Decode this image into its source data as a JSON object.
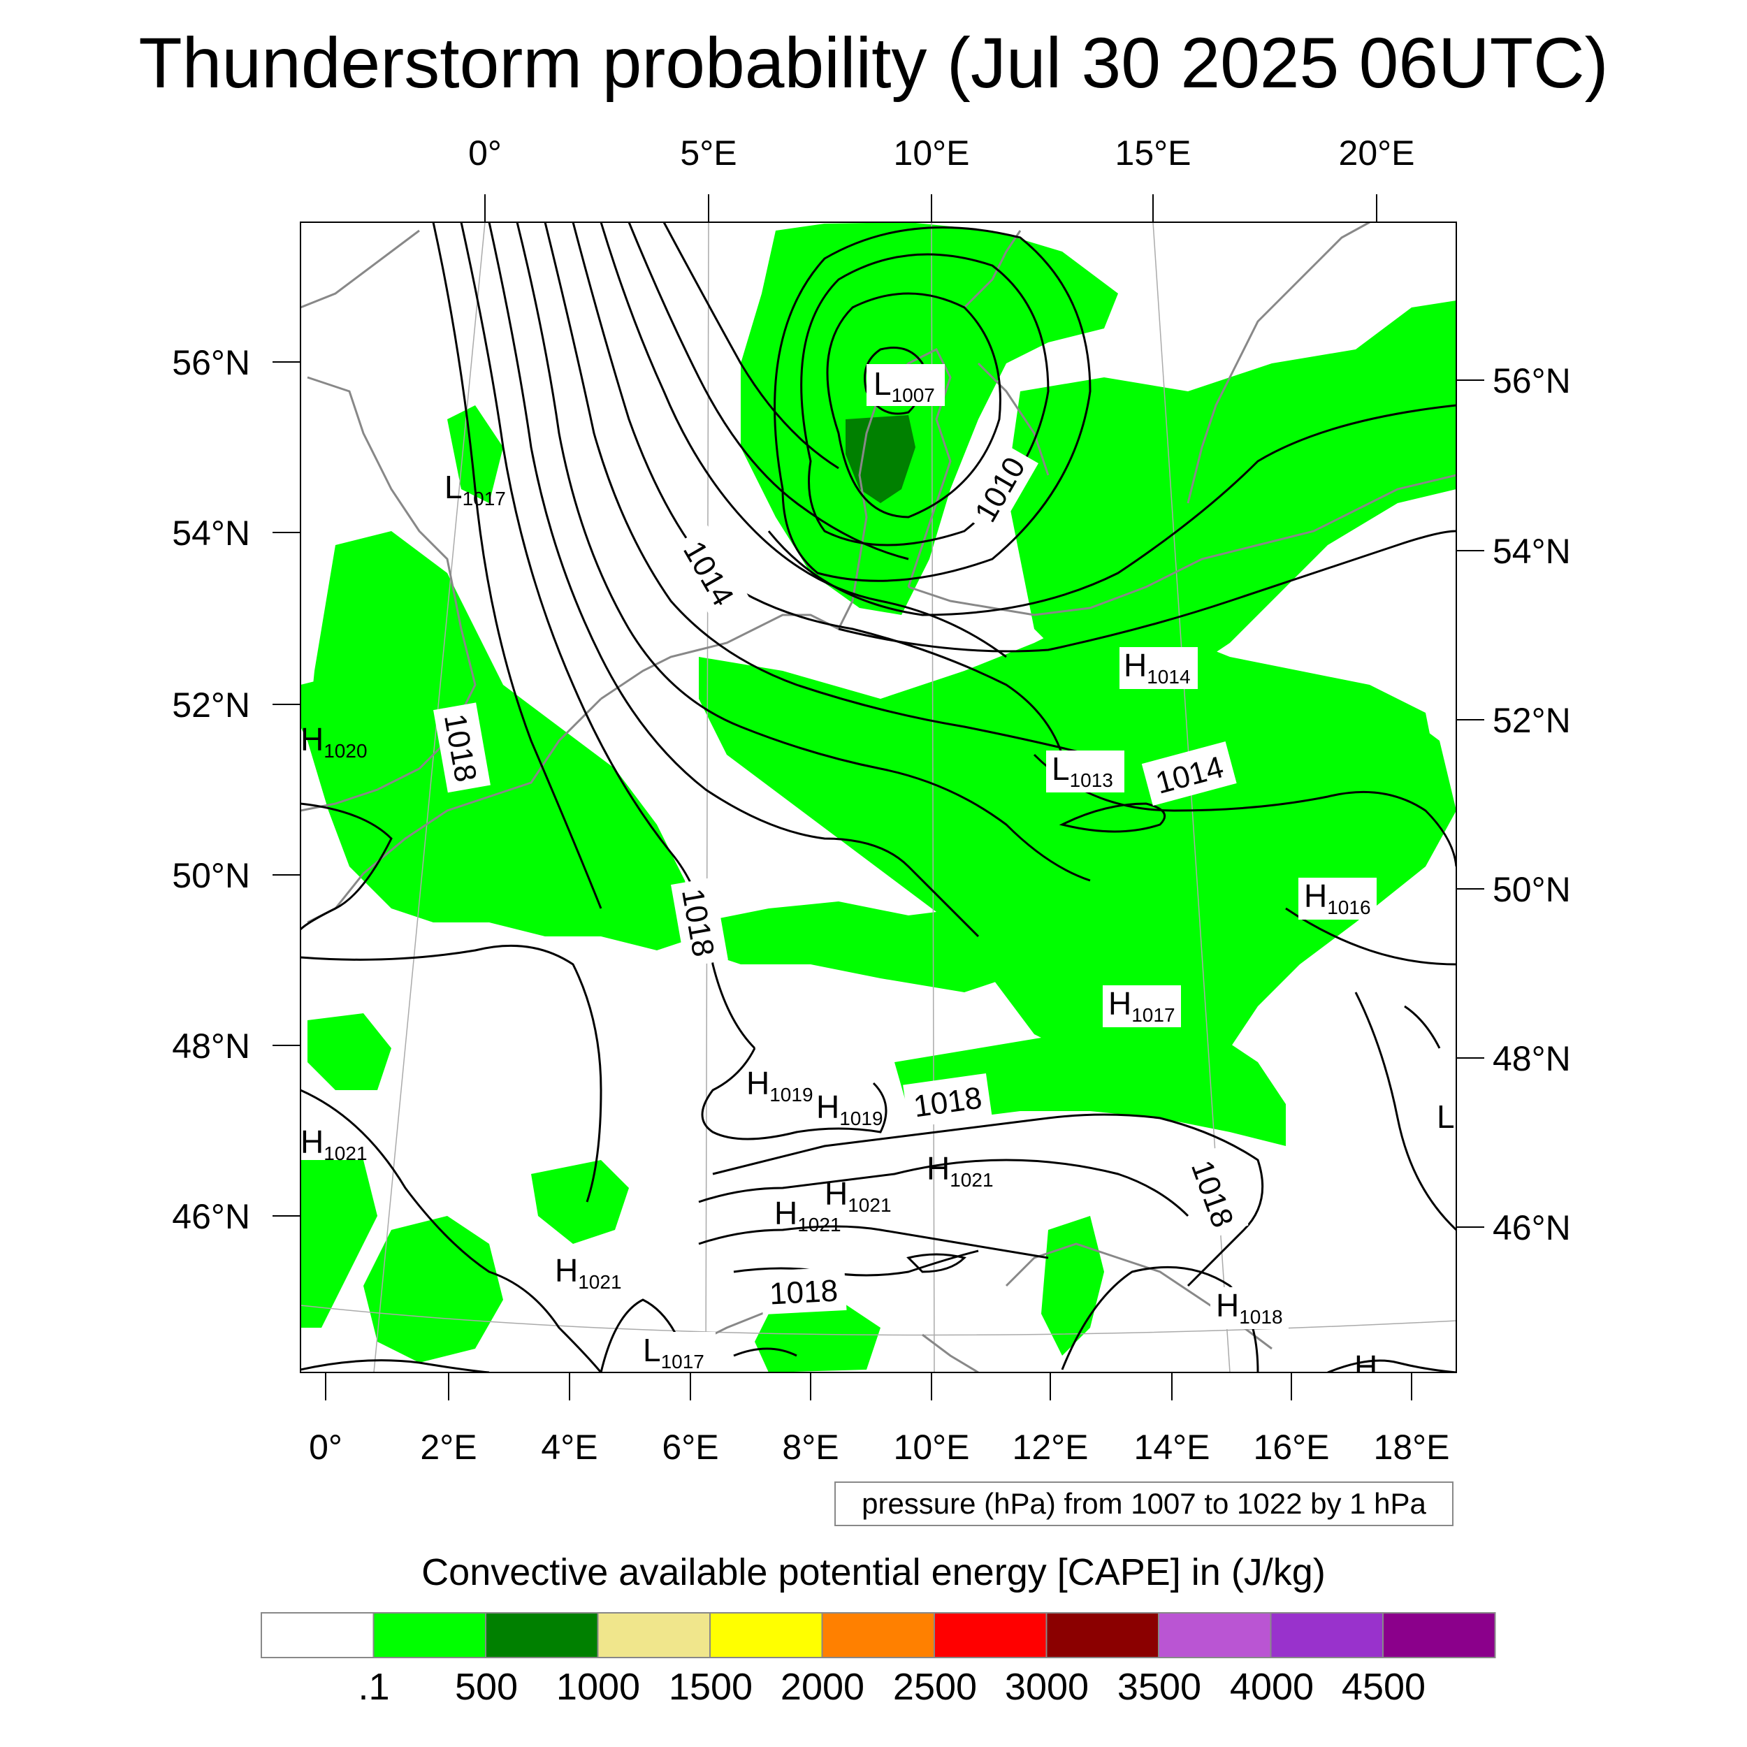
{
  "title": "Thunderstorm probability (Jul 30 2025 06UTC)",
  "axes": {
    "top_lon": [
      "0°",
      "5°E",
      "10°E",
      "15°E",
      "20°E"
    ],
    "bottom_lon": [
      "0°",
      "2°E",
      "4°E",
      "6°E",
      "8°E",
      "10°E",
      "12°E",
      "14°E",
      "16°E",
      "18°E"
    ],
    "left_lat": [
      "56°N",
      "54°N",
      "52°N",
      "50°N",
      "48°N",
      "46°N"
    ],
    "right_lat": [
      "56°N",
      "54°N",
      "52°N",
      "50°N",
      "48°N",
      "46°N"
    ]
  },
  "isobar_labels": [
    "1014",
    "1010",
    "1018",
    "1018",
    "1014",
    "1018",
    "1018",
    "1018"
  ],
  "pressure_centers": [
    {
      "type": "L",
      "value": "1007"
    },
    {
      "type": "L",
      "value": "1017"
    },
    {
      "type": "H",
      "value": "1014"
    },
    {
      "type": "H",
      "value": "1020"
    },
    {
      "type": "L",
      "value": "1013"
    },
    {
      "type": "H",
      "value": "1016"
    },
    {
      "type": "H",
      "value": "1017"
    },
    {
      "type": "H",
      "value": "1019"
    },
    {
      "type": "H",
      "value": "1019"
    },
    {
      "type": "H",
      "value": "1021"
    },
    {
      "type": "H",
      "value": "1021"
    },
    {
      "type": "H",
      "value": "1021"
    },
    {
      "type": "H",
      "value": "1021"
    },
    {
      "type": "H",
      "value": "1021"
    },
    {
      "type": "H",
      "value": "1018"
    },
    {
      "type": "L",
      "value": "1017"
    },
    {
      "type": "L",
      "value": ""
    },
    {
      "type": "H",
      "value": ""
    }
  ],
  "contour_info": "pressure (hPa) from 1007 to 1022 by 1 hPa",
  "colorbar": {
    "title": "Convective available potential energy [CAPE] in (J/kg)",
    "colors": [
      "#ffffff",
      "#00ff00",
      "#008000",
      "#f0e68c",
      "#ffff00",
      "#ff8000",
      "#ff0000",
      "#8b0000",
      "#ba55d3",
      "#9932cc",
      "#8b008b"
    ],
    "labels": [
      ".1",
      "500",
      "1000",
      "1500",
      "2000",
      "2500",
      "3000",
      "3500",
      "4000",
      "4500"
    ]
  },
  "colors": {
    "cape_green": "#00ff00",
    "cape_dark_green": "#008000",
    "coastline": "#888888",
    "isobar": "#000000"
  }
}
